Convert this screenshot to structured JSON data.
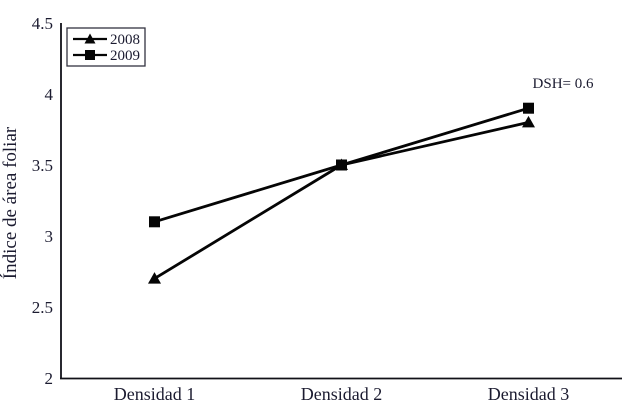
{
  "chart_data": {
    "type": "line",
    "categories": [
      "Densidad 1",
      "Densidad 2",
      "Densidad 3"
    ],
    "series": [
      {
        "name": "2008",
        "marker": "triangle",
        "values": [
          2.7,
          3.5,
          3.8
        ]
      },
      {
        "name": "2009",
        "marker": "square",
        "values": [
          3.1,
          3.5,
          3.9
        ]
      }
    ],
    "title": "",
    "xlabel": "",
    "ylabel": "Índice de área foliar",
    "ylim": [
      2,
      4.5
    ],
    "ytick_step": 0.5,
    "ytick_labels": [
      "2",
      "2.5",
      "3",
      "3.5",
      "4",
      "4.5"
    ],
    "grid": false,
    "legend_position": "top-left",
    "annotation": "DSH= 0.6",
    "colors": {
      "line": "#050505",
      "marker": "#050505",
      "text": "#1b1b30",
      "axis": "#111118",
      "background": "#ffffff",
      "legend_border": "#333340"
    }
  }
}
